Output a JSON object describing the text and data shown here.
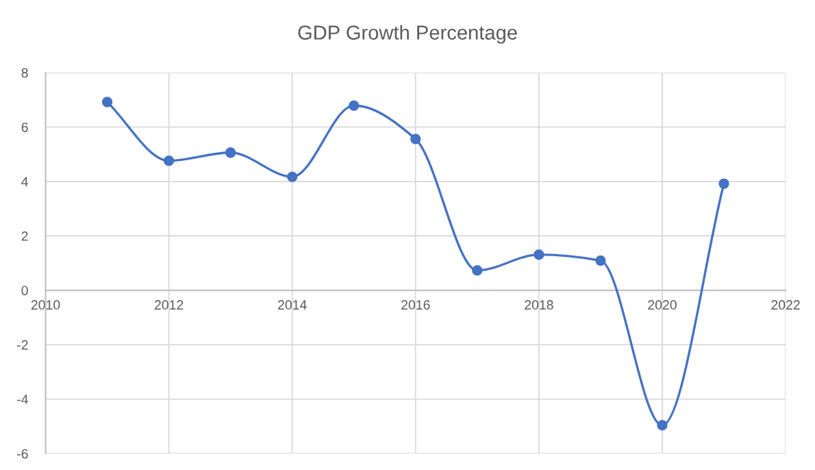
{
  "chart_data": {
    "type": "line",
    "title": "GDP Growth Percentage",
    "x": [
      2011,
      2012,
      2013,
      2014,
      2015,
      2016,
      2017,
      2018,
      2019,
      2020,
      2021
    ],
    "series": [
      {
        "color": "#4472c4",
        "values": [
          6.92,
          4.76,
          5.06,
          4.17,
          6.79,
          5.56,
          0.73,
          1.31,
          1.09,
          -4.96,
          3.92
        ]
      }
    ],
    "xlim": [
      2010,
      2022
    ],
    "xticks": [
      2010,
      2012,
      2014,
      2016,
      2018,
      2020,
      2022
    ],
    "ylim": [
      -6,
      8
    ],
    "yticks": [
      -6,
      -4,
      -2,
      0,
      2,
      4,
      6,
      8
    ],
    "grid": true,
    "marker": "circle",
    "line_style": "solid"
  }
}
